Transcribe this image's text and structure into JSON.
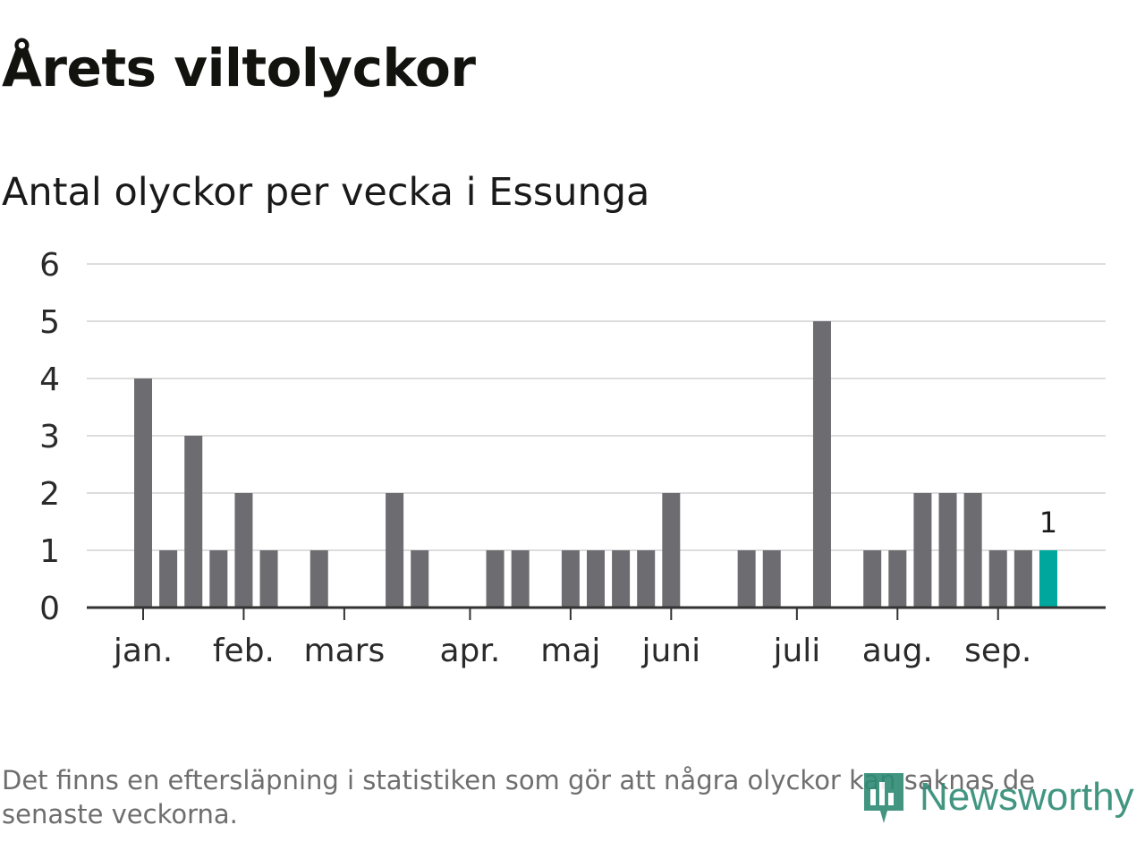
{
  "title": "Årets viltolyckor",
  "subtitle": "Antal olyckor per vecka i Essunga",
  "footnote": "Det finns en eftersläpning i statistiken som gör att några olyckor kan saknas de senaste veckorna.",
  "logo": {
    "text": "Newsworthy",
    "icon": "newsworthy-logo-icon"
  },
  "colors": {
    "bar": "#6d6c71",
    "highlight": "#00a79d",
    "grid": "#dddddd",
    "axis": "#333333",
    "logo": "#2e8b74"
  },
  "chart_data": {
    "type": "bar",
    "title": "Antal olyckor per vecka i Essunga",
    "xlabel": "",
    "ylabel": "",
    "ylim": [
      0,
      6
    ],
    "yticks": [
      0,
      1,
      2,
      3,
      4,
      5,
      6
    ],
    "grid": true,
    "month_labels": [
      {
        "label": "jan.",
        "week": 1
      },
      {
        "label": "feb.",
        "week": 5
      },
      {
        "label": "mars",
        "week": 9
      },
      {
        "label": "apr.",
        "week": 14
      },
      {
        "label": "maj",
        "week": 18
      },
      {
        "label": "juni",
        "week": 22
      },
      {
        "label": "juli",
        "week": 27
      },
      {
        "label": "aug.",
        "week": 31
      },
      {
        "label": "sep.",
        "week": 35
      }
    ],
    "weeks": [
      1,
      2,
      3,
      4,
      5,
      6,
      7,
      8,
      9,
      10,
      11,
      12,
      13,
      14,
      15,
      16,
      17,
      18,
      19,
      20,
      21,
      22,
      23,
      24,
      25,
      26,
      27,
      28,
      29,
      30,
      31,
      32,
      33,
      34,
      35,
      36,
      37
    ],
    "values": [
      4,
      1,
      3,
      1,
      2,
      1,
      0,
      1,
      0,
      0,
      2,
      1,
      0,
      0,
      1,
      1,
      0,
      1,
      1,
      1,
      1,
      2,
      0,
      0,
      1,
      1,
      0,
      5,
      0,
      1,
      1,
      2,
      2,
      2,
      1,
      1,
      1
    ],
    "highlight_week": 37,
    "highlight_label": "1"
  }
}
